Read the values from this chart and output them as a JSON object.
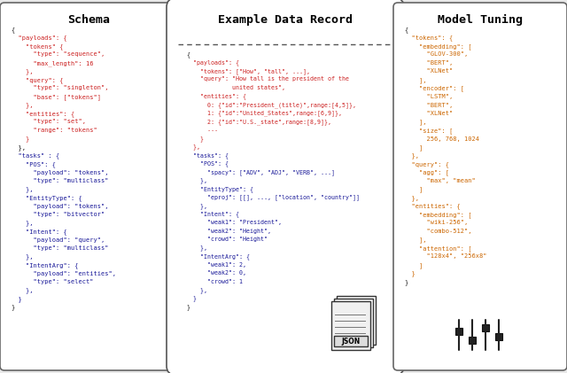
{
  "title_schema": "Schema",
  "title_example": "Example Data Record",
  "title_tuning": "Model Tuning",
  "schema_text": [
    [
      "{",
      "black"
    ],
    [
      "  \"payloads\": {",
      "red"
    ],
    [
      "    \"tokens\" {",
      "red"
    ],
    [
      "      \"type\": \"sequence\",",
      "red"
    ],
    [
      "      \"max_length\": 16",
      "red"
    ],
    [
      "    },",
      "red"
    ],
    [
      "    \"query\": {",
      "red"
    ],
    [
      "      \"type\": \"singleton\",",
      "red"
    ],
    [
      "      \"base\": [\"tokens\"]",
      "red"
    ],
    [
      "    },",
      "red"
    ],
    [
      "    \"entities\": {",
      "red"
    ],
    [
      "      \"type\": \"set\",",
      "red"
    ],
    [
      "      \"range\": \"tokens\"",
      "red"
    ],
    [
      "    }",
      "red"
    ],
    [
      "  },",
      "black"
    ],
    [
      "  \"tasks\" : {",
      "blue"
    ],
    [
      "    \"POS\": {",
      "blue"
    ],
    [
      "      \"payload\": \"tokens\",",
      "blue"
    ],
    [
      "      \"type\": \"multiclass\"",
      "blue"
    ],
    [
      "    },",
      "blue"
    ],
    [
      "    \"EntityType\": {",
      "blue"
    ],
    [
      "      \"payload\": \"tokens\",",
      "blue"
    ],
    [
      "      \"type\": \"bitvector\"",
      "blue"
    ],
    [
      "    },",
      "blue"
    ],
    [
      "    \"Intent\": {",
      "blue"
    ],
    [
      "      \"payload\": \"query\",",
      "blue"
    ],
    [
      "      \"type\": \"multiclass\"",
      "blue"
    ],
    [
      "    },",
      "blue"
    ],
    [
      "    \"IntentArg\": {",
      "blue"
    ],
    [
      "      \"payload\": \"entities\",",
      "blue"
    ],
    [
      "      \"type\": \"select\"",
      "blue"
    ],
    [
      "    },",
      "blue"
    ],
    [
      "  }",
      "blue"
    ],
    [
      "}",
      "black"
    ]
  ],
  "example_text": [
    [
      "{",
      "black"
    ],
    [
      "  \"payloads\": {",
      "red"
    ],
    [
      "    \"tokens\": [\"How\", \"tall\", ...],",
      "red"
    ],
    [
      "    \"query\": \"How tall is the president of the",
      "red"
    ],
    [
      "             united states\",",
      "red"
    ],
    [
      "    \"entities\": {",
      "red"
    ],
    [
      "      0: {\"id\":\"President_(title)\",range:[4,5]},",
      "red"
    ],
    [
      "      1: {\"id\":\"United_States\",range:[6,9]},",
      "red"
    ],
    [
      "      2: {\"id\":\"U.S._state\",range:[8,9]},",
      "red"
    ],
    [
      "      ...",
      "red"
    ],
    [
      "    }",
      "red"
    ],
    [
      "  },",
      "red"
    ],
    [
      "  \"tasks\": {",
      "blue"
    ],
    [
      "    \"POS\": {",
      "blue"
    ],
    [
      "      \"spacy\": [\"ADV\", \"ADJ\", \"VERB\", ...]",
      "blue"
    ],
    [
      "    },",
      "blue"
    ],
    [
      "    \"EntityType\": {",
      "blue"
    ],
    [
      "      \"eproj\": [[], ..., [\"location\", \"country\"]]",
      "blue"
    ],
    [
      "    },",
      "blue"
    ],
    [
      "    \"Intent\": {",
      "blue"
    ],
    [
      "      \"weak1\": \"President\",",
      "blue"
    ],
    [
      "      \"weak2\": \"Height\",",
      "blue"
    ],
    [
      "      \"crowd\": \"Height\"",
      "blue"
    ],
    [
      "    },",
      "blue"
    ],
    [
      "    \"IntentArg\": {",
      "blue"
    ],
    [
      "      \"weak1\": 2,",
      "blue"
    ],
    [
      "      \"weak2\": 0,",
      "blue"
    ],
    [
      "      \"crowd\": 1",
      "blue"
    ],
    [
      "    },",
      "blue"
    ],
    [
      "  }",
      "blue"
    ],
    [
      "}",
      "black"
    ]
  ],
  "tuning_text": [
    [
      "{",
      "black"
    ],
    [
      "  \"tokens\": {",
      "orange"
    ],
    [
      "    \"embedding\": [",
      "orange"
    ],
    [
      "      \"GLOV-300\",",
      "orange"
    ],
    [
      "      \"BERT\",",
      "orange"
    ],
    [
      "      \"XLNet\"",
      "orange"
    ],
    [
      "    ],",
      "orange"
    ],
    [
      "    \"encoder\": [",
      "orange"
    ],
    [
      "      \"LSTM\",",
      "orange"
    ],
    [
      "      \"BERT\",",
      "orange"
    ],
    [
      "      \"XLNet\"",
      "orange"
    ],
    [
      "    ],",
      "orange"
    ],
    [
      "    \"size\": [",
      "orange"
    ],
    [
      "      256, 768, 1024",
      "orange"
    ],
    [
      "    ]",
      "orange"
    ],
    [
      "  },",
      "orange"
    ],
    [
      "  \"query\": {",
      "orange"
    ],
    [
      "    \"agg\": [",
      "orange"
    ],
    [
      "      \"max\", \"mean\"",
      "orange"
    ],
    [
      "    ]",
      "orange"
    ],
    [
      "  },",
      "orange"
    ],
    [
      "  \"entities\": {",
      "orange"
    ],
    [
      "    \"embedding\": [",
      "orange"
    ],
    [
      "      \"wiki-256\",",
      "orange"
    ],
    [
      "      \"combo-512\",",
      "orange"
    ],
    [
      "    ],",
      "orange"
    ],
    [
      "    \"attention\": [",
      "orange"
    ],
    [
      "      \"128x4\", \"256x8\"",
      "orange"
    ],
    [
      "    ]",
      "orange"
    ],
    [
      "  }",
      "orange"
    ],
    [
      "}",
      "black"
    ]
  ],
  "bg_color": "#e8e8e8",
  "panel_bg": "#ffffff",
  "schema_color": "#cc2222",
  "example_color": "#1a1a99",
  "tuning_color": "#cc6600",
  "title_fontsize": 9.5,
  "code_fontsize": 5.0
}
